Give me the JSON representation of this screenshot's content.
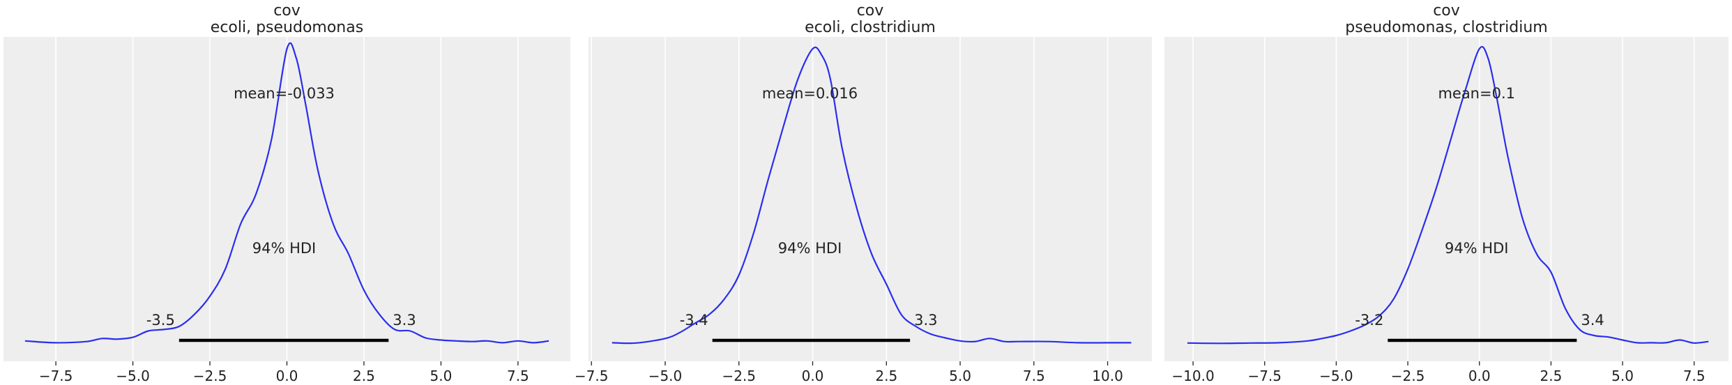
{
  "theme": {
    "panel_bg": "#eeeeee",
    "grid": "#ffffff",
    "curve": "#2a2eec",
    "hdi_bar": "#000000",
    "text": "#222222"
  },
  "chart_data": [
    {
      "type": "line",
      "title_line1": "cov",
      "title_line2": "ecoli, pseudomonas",
      "mean_label": "mean=-0.033",
      "hdi_label": "94% HDI",
      "hdi": [
        -3.5,
        3.3
      ],
      "hdi_low_label": "-3.5",
      "hdi_high_label": "3.3",
      "xlim": [
        -9.2,
        9.2
      ],
      "xticks": [
        -7.5,
        -5.0,
        -2.5,
        0.0,
        2.5,
        5.0,
        7.5
      ],
      "xtick_labels": [
        "−7.5",
        "−5.0",
        "−2.5",
        "0.0",
        "2.5",
        "5.0",
        "7.5"
      ],
      "grid": true,
      "density": {
        "x": [
          -8.5,
          -7.5,
          -6.5,
          -6.0,
          -5.5,
          -5.0,
          -4.5,
          -4.0,
          -3.5,
          -3.0,
          -2.5,
          -2.0,
          -1.5,
          -1.0,
          -0.5,
          0.0,
          0.3,
          0.6,
          1.0,
          1.5,
          2.0,
          2.5,
          3.0,
          3.5,
          4.0,
          4.5,
          5.0,
          5.5,
          6.0,
          6.5,
          7.0,
          7.5,
          8.0,
          8.5
        ],
        "y": [
          0.012,
          0.006,
          0.01,
          0.02,
          0.018,
          0.024,
          0.045,
          0.05,
          0.06,
          0.1,
          0.16,
          0.25,
          0.4,
          0.5,
          0.68,
          0.98,
          0.95,
          0.8,
          0.58,
          0.4,
          0.3,
          0.18,
          0.1,
          0.05,
          0.045,
          0.022,
          0.015,
          0.012,
          0.01,
          0.012,
          0.006,
          0.012,
          0.006,
          0.012
        ]
      }
    },
    {
      "type": "line",
      "title_line1": "cov",
      "title_line2": "ecoli, clostridium",
      "mean_label": "mean=0.016",
      "hdi_label": "94% HDI",
      "hdi": [
        -3.4,
        3.3
      ],
      "hdi_low_label": "-3.4",
      "hdi_high_label": "3.3",
      "xlim": [
        -7.6,
        11.5
      ],
      "xticks": [
        -7.5,
        -5.0,
        -2.5,
        0.0,
        2.5,
        5.0,
        7.5,
        10.0
      ],
      "xtick_labels": [
        "−7.5",
        "−5.0",
        "−2.5",
        "0.0",
        "2.5",
        "5.0",
        "7.5",
        "10.0"
      ],
      "grid": true,
      "density": {
        "x": [
          -6.8,
          -6.0,
          -5.0,
          -4.5,
          -4.0,
          -3.5,
          -3.0,
          -2.5,
          -2.0,
          -1.5,
          -1.0,
          -0.5,
          0.0,
          0.3,
          0.6,
          1.0,
          1.5,
          2.0,
          2.5,
          3.0,
          3.5,
          4.0,
          4.5,
          5.0,
          5.5,
          6.0,
          6.5,
          7.0,
          8.0,
          9.0,
          10.0,
          10.8
        ],
        "y": [
          0.006,
          0.005,
          0.02,
          0.04,
          0.07,
          0.1,
          0.15,
          0.23,
          0.37,
          0.55,
          0.72,
          0.88,
          0.98,
          0.96,
          0.88,
          0.65,
          0.45,
          0.3,
          0.2,
          0.1,
          0.06,
          0.035,
          0.022,
          0.012,
          0.01,
          0.02,
          0.01,
          0.01,
          0.01,
          0.006,
          0.006,
          0.006
        ]
      }
    },
    {
      "type": "line",
      "title_line1": "cov",
      "title_line2": "pseudomonas, clostridium",
      "mean_label": "mean=0.1",
      "hdi_label": "94% HDI",
      "hdi": [
        -3.2,
        3.4
      ],
      "hdi_low_label": "-3.2",
      "hdi_high_label": "3.4",
      "xlim": [
        -11.0,
        8.7
      ],
      "xticks": [
        -10.0,
        -7.5,
        -5.0,
        -2.5,
        0.0,
        2.5,
        5.0,
        7.5
      ],
      "xtick_labels": [
        "−10.0",
        "−7.5",
        "−5.0",
        "−2.5",
        "0.0",
        "2.5",
        "5.0",
        "7.5"
      ],
      "grid": true,
      "density": {
        "x": [
          -10.2,
          -9.0,
          -8.0,
          -7.0,
          -6.0,
          -5.5,
          -5.0,
          -4.5,
          -4.0,
          -3.5,
          -3.0,
          -2.5,
          -2.0,
          -1.5,
          -1.0,
          -0.5,
          0.0,
          0.3,
          0.6,
          1.0,
          1.5,
          2.0,
          2.5,
          3.0,
          3.5,
          4.0,
          4.5,
          5.0,
          5.5,
          6.0,
          6.5,
          7.0,
          7.5,
          8.0
        ],
        "y": [
          0.005,
          0.004,
          0.005,
          0.006,
          0.012,
          0.02,
          0.03,
          0.045,
          0.065,
          0.095,
          0.15,
          0.25,
          0.38,
          0.52,
          0.68,
          0.84,
          0.98,
          0.95,
          0.82,
          0.62,
          0.42,
          0.3,
          0.24,
          0.12,
          0.05,
          0.03,
          0.025,
          0.015,
          0.006,
          0.006,
          0.006,
          0.015,
          0.005,
          0.01
        ]
      }
    }
  ]
}
